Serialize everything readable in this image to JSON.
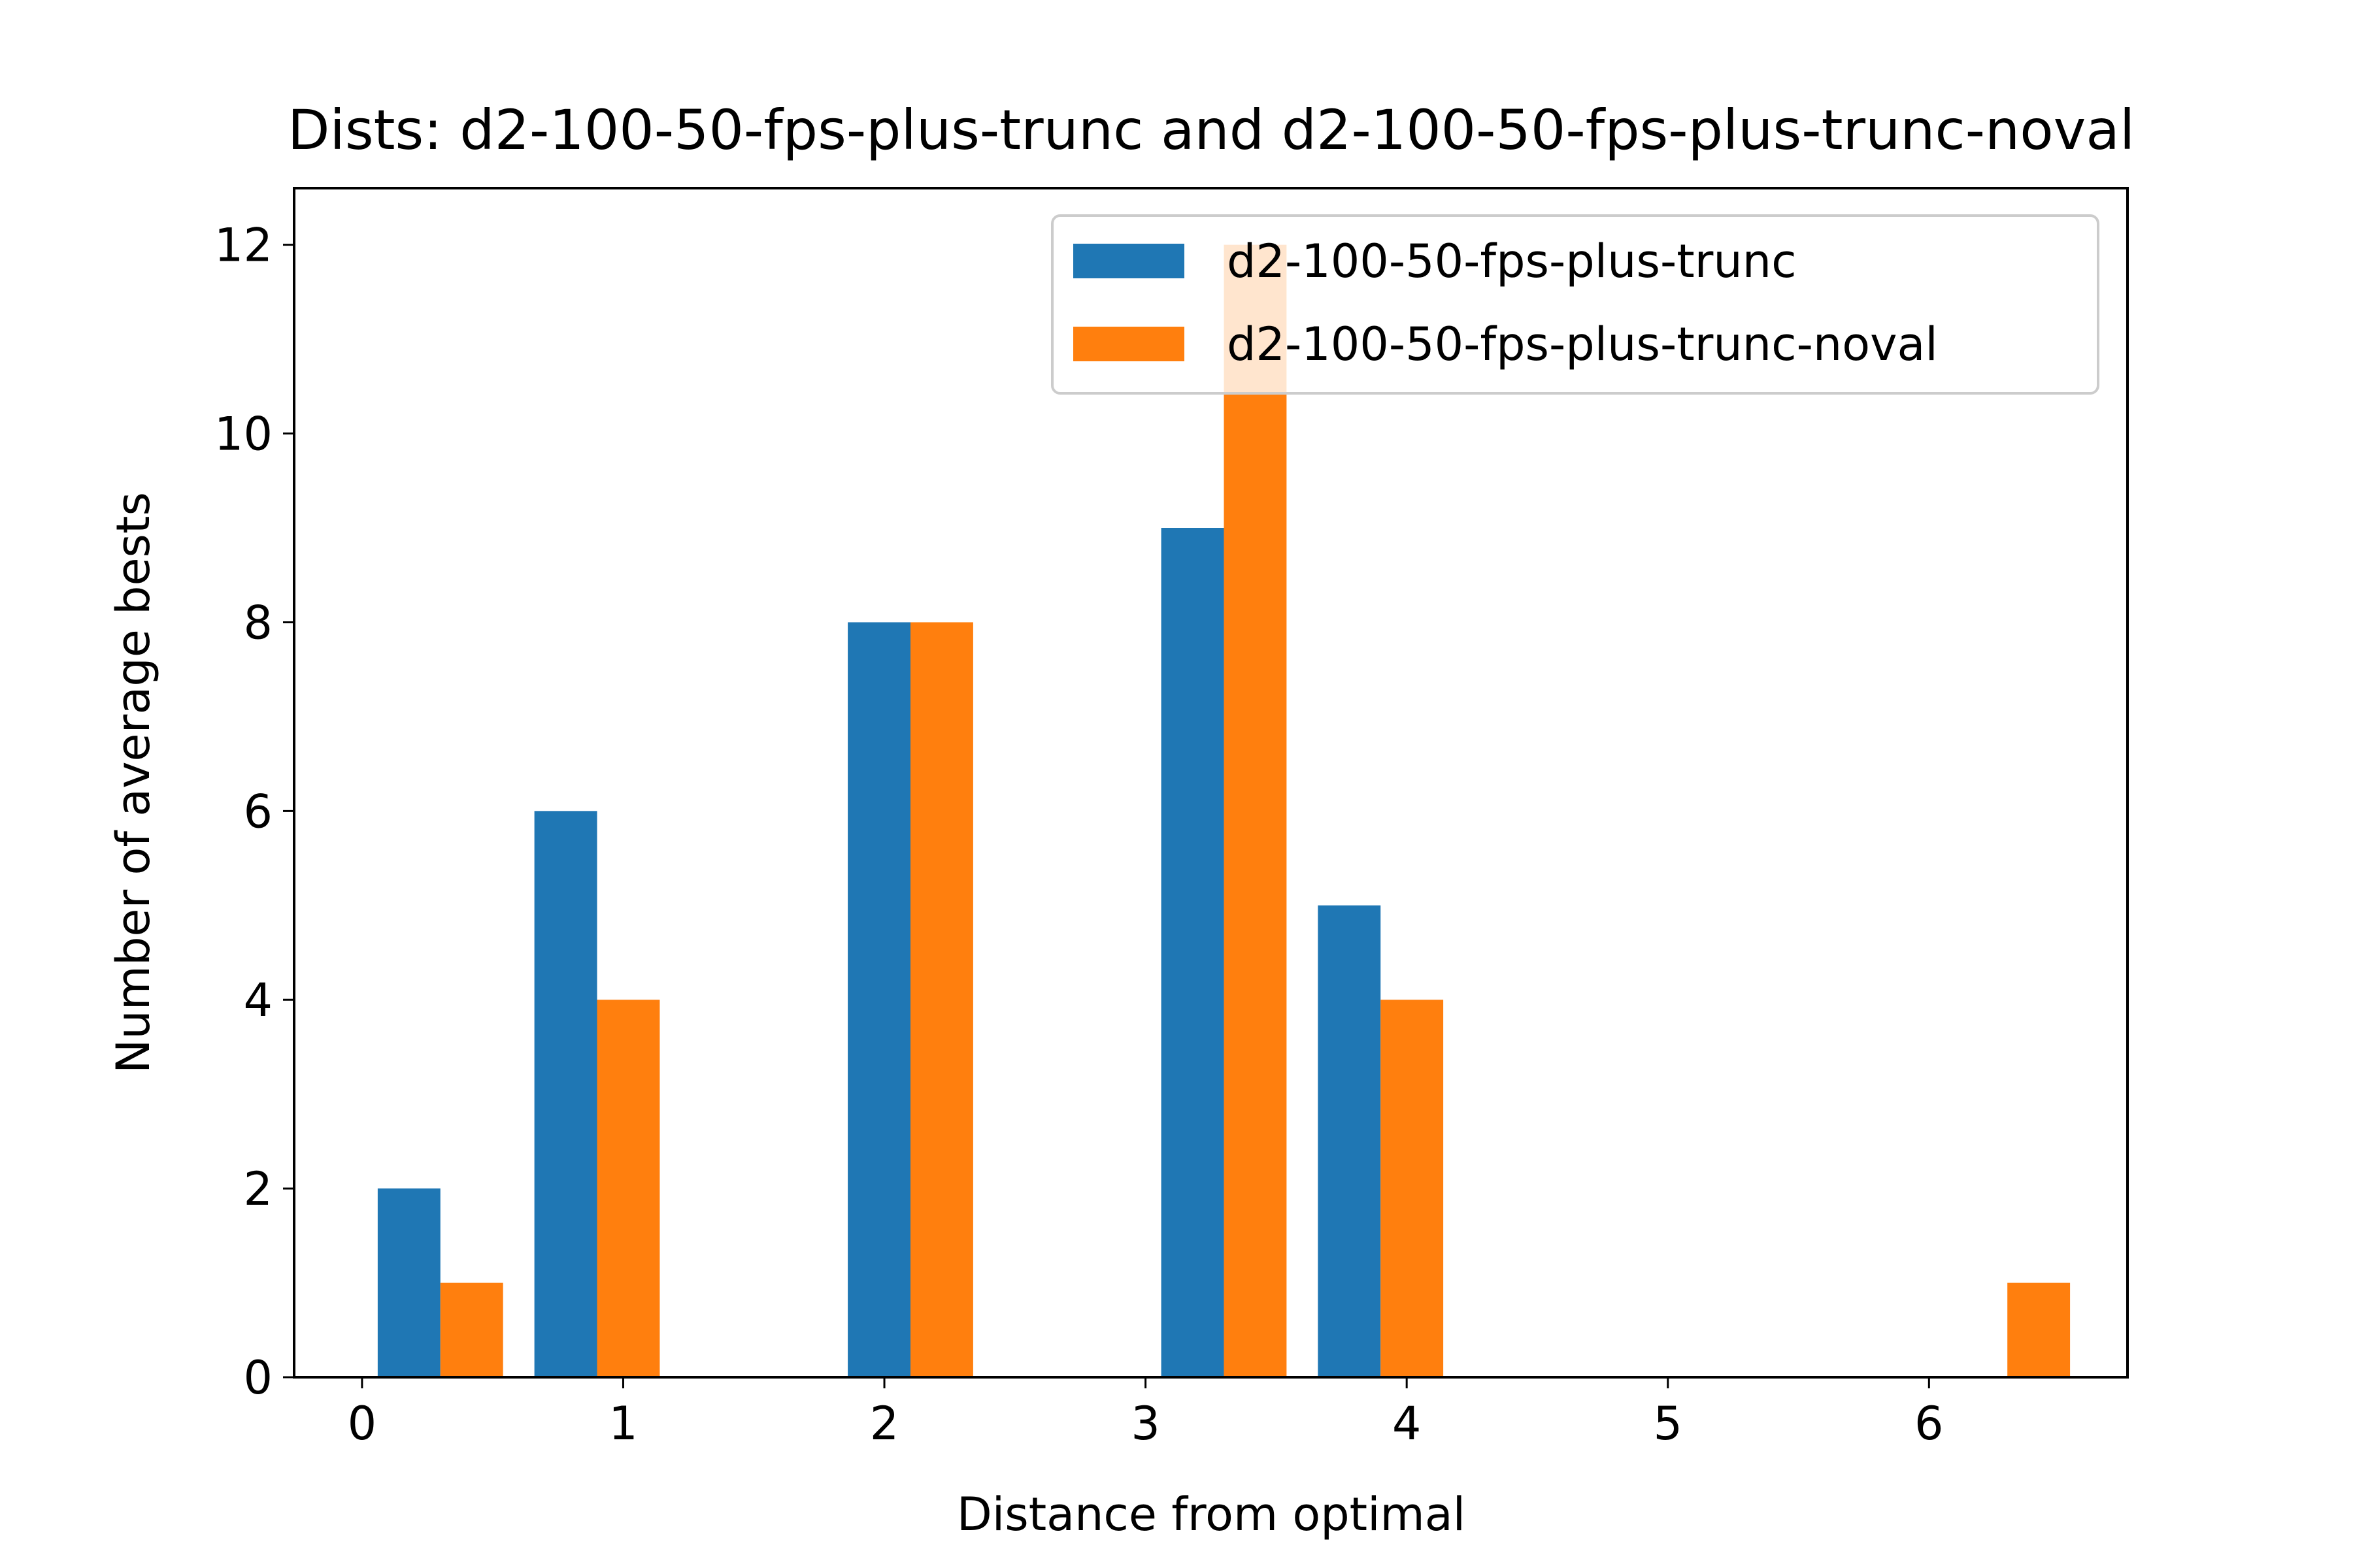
{
  "chart_data": {
    "type": "bar",
    "title": "Dists: d2-100-50-fps-plus-trunc and d2-100-50-fps-plus-trunc-noval",
    "xlabel": "Distance from optimal",
    "ylabel": "Number of average bests",
    "xlim": [
      -0.26,
      6.76
    ],
    "ylim": [
      0,
      12.6
    ],
    "xticks": [
      0,
      1,
      2,
      3,
      4,
      5,
      6
    ],
    "yticks": [
      0,
      2,
      4,
      6,
      8,
      10,
      12
    ],
    "grid": false,
    "legend_position": "top-right",
    "series": [
      {
        "name": "d2-100-50-fps-plus-trunc",
        "color": "#1f77b4",
        "bins": [
          {
            "x0": 0.06,
            "x1": 0.3,
            "value": 2
          },
          {
            "x0": 0.66,
            "x1": 0.9,
            "value": 6
          },
          {
            "x0": 1.86,
            "x1": 2.1,
            "value": 8
          },
          {
            "x0": 3.06,
            "x1": 3.3,
            "value": 9
          },
          {
            "x0": 3.66,
            "x1": 3.9,
            "value": 5
          }
        ]
      },
      {
        "name": "d2-100-50-fps-plus-trunc-noval",
        "color": "#ff7f0e",
        "bins": [
          {
            "x0": 0.3,
            "x1": 0.54,
            "value": 1
          },
          {
            "x0": 0.9,
            "x1": 1.14,
            "value": 4
          },
          {
            "x0": 2.1,
            "x1": 2.34,
            "value": 8
          },
          {
            "x0": 3.3,
            "x1": 3.54,
            "value": 12
          },
          {
            "x0": 3.9,
            "x1": 4.14,
            "value": 4
          },
          {
            "x0": 6.3,
            "x1": 6.54,
            "value": 1
          }
        ]
      }
    ]
  }
}
